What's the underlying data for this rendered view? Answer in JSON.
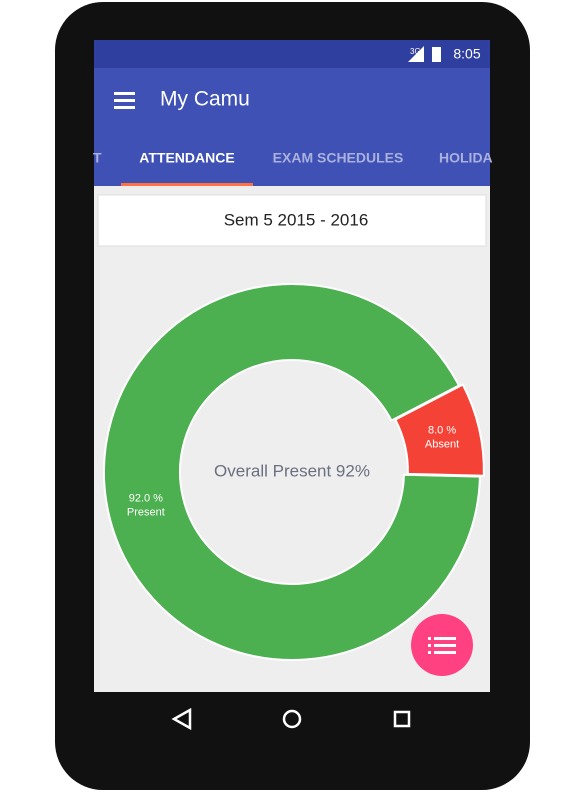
{
  "status_bar": {
    "network": "3G",
    "time": "8:05"
  },
  "app_bar": {
    "title": "My Camu"
  },
  "tabs": [
    "T",
    "ATTENDANCE",
    "EXAM SCHEDULES",
    "HOLIDA"
  ],
  "semester": "Sem 5  2015 - 2016",
  "chart_data": {
    "type": "pie",
    "donut": true,
    "center_label": "Overall Present 92%",
    "categories": [
      "Present",
      "Absent"
    ],
    "values": [
      92.0,
      8.0
    ],
    "value_labels": [
      "92.0 %",
      "8.0 %"
    ],
    "colors": [
      "#4caf50",
      "#f44336"
    ]
  }
}
